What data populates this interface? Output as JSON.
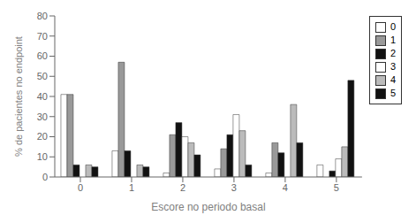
{
  "chart_data": {
    "type": "bar",
    "xlabel": "Escore no periodo basal",
    "ylabel": "% de pacientes no endpoint",
    "categories": [
      "0",
      "1",
      "2",
      "3",
      "4",
      "5"
    ],
    "series": [
      {
        "name": "0",
        "color": "#ffffff",
        "values": [
          41,
          13,
          2,
          4,
          2,
          6
        ]
      },
      {
        "name": "1",
        "color": "#999999",
        "values": [
          41,
          57,
          21,
          14,
          17,
          0
        ]
      },
      {
        "name": "2",
        "color": "#111111",
        "values": [
          6,
          13,
          27,
          21,
          12,
          3
        ]
      },
      {
        "name": "3",
        "color": "#ffffff",
        "values": [
          0,
          0,
          20,
          31,
          0,
          9
        ]
      },
      {
        "name": "4",
        "color": "#bbbbbb",
        "values": [
          6,
          6,
          17,
          23,
          36,
          15
        ]
      },
      {
        "name": "5",
        "color": "#111111",
        "values": [
          5,
          5,
          11,
          6,
          17,
          48
        ]
      }
    ],
    "ylim": [
      0,
      80
    ],
    "yticks": [
      0,
      10,
      20,
      30,
      40,
      50,
      60,
      70,
      80
    ],
    "grid": false,
    "legend": "upper right"
  }
}
